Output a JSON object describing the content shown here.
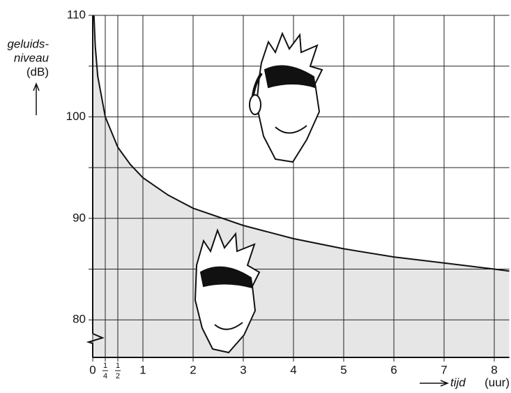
{
  "chart_data": {
    "type": "area",
    "ylabel": [
      "geluids-",
      "niveau"
    ],
    "yunit": "(dB)",
    "xlabel": "tijd",
    "xunit": "(uur)",
    "x": [
      0.025,
      0.05,
      0.1,
      0.25,
      0.5,
      0.75,
      1,
      1.5,
      2,
      3,
      4,
      5,
      6,
      7,
      8,
      8.3
    ],
    "values": [
      110,
      107,
      104,
      100,
      97,
      95.3,
      94,
      92.3,
      91,
      89.3,
      88,
      87,
      86.2,
      85.6,
      85,
      84.8
    ],
    "color": "#e6e6e6",
    "line_color": "#111",
    "xlim": [
      0,
      8.3
    ],
    "ylim": [
      76.3,
      110
    ],
    "xticks": [
      0,
      {
        "value": 0.25,
        "label": "1/4"
      },
      {
        "value": 0.5,
        "label": "1/2"
      },
      1,
      2,
      3,
      4,
      5,
      6,
      7,
      8
    ],
    "yticks": [
      80,
      90,
      100,
      110
    ],
    "y_minor_ticks": [
      85,
      95,
      105
    ],
    "grid": true
  }
}
